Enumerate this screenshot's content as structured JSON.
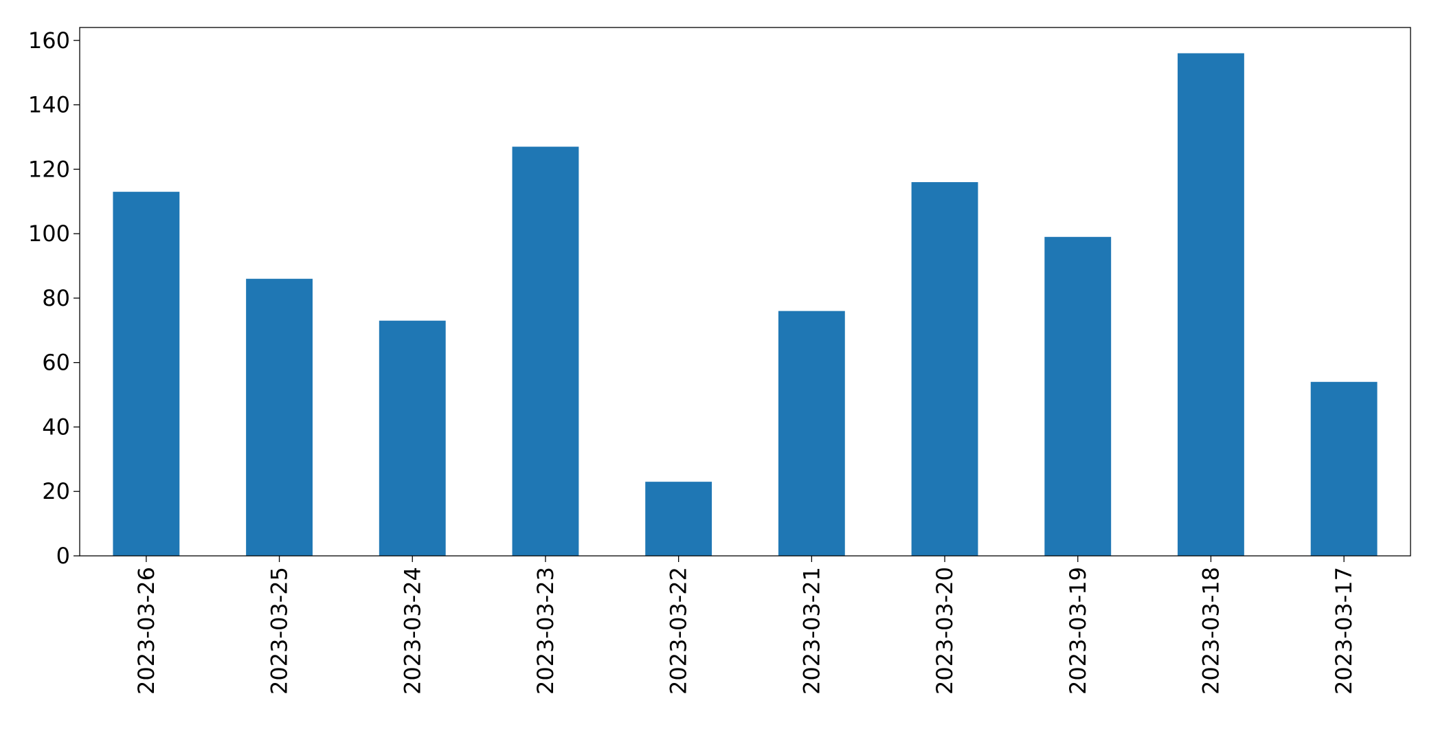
{
  "chart_data": {
    "type": "bar",
    "categories": [
      "2023-03-26",
      "2023-03-25",
      "2023-03-24",
      "2023-03-23",
      "2023-03-22",
      "2023-03-21",
      "2023-03-20",
      "2023-03-19",
      "2023-03-18",
      "2023-03-17"
    ],
    "values": [
      113,
      86,
      73,
      127,
      23,
      76,
      116,
      99,
      156,
      54
    ],
    "color": "#1f77b4",
    "ylim": [
      0,
      164
    ],
    "yticks": [
      0,
      20,
      40,
      60,
      80,
      100,
      120,
      140,
      160
    ],
    "grid": false
  }
}
